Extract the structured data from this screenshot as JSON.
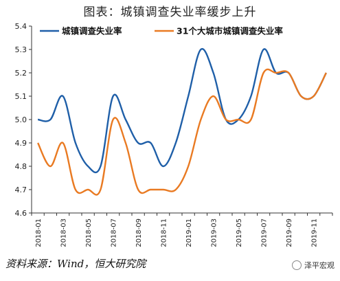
{
  "title": "图表：城镇调查失业率缓步上升",
  "source": "资料来源：Wind，恒大研究院",
  "watermark": "泽平宏观",
  "chart_data": {
    "type": "line",
    "x": [
      "2018-01",
      "2018-02",
      "2018-03",
      "2018-04",
      "2018-05",
      "2018-06",
      "2018-07",
      "2018-08",
      "2018-09",
      "2018-10",
      "2018-11",
      "2018-12",
      "2019-01",
      "2019-02",
      "2019-03",
      "2019-04",
      "2019-05",
      "2019-06",
      "2019-07",
      "2019-08",
      "2019-09",
      "2019-10",
      "2019-11",
      "2019-12"
    ],
    "x_tick_labels": [
      "2018-01",
      "2018-03",
      "2018-05",
      "2018-07",
      "2018-09",
      "2018-11",
      "2019-01",
      "2019-03",
      "2019-05",
      "2019-07",
      "2019-09",
      "2019-11"
    ],
    "ylim": [
      4.6,
      5.4
    ],
    "y_ticks": [
      "4.6",
      "4.7",
      "4.8",
      "4.9",
      "5.0",
      "5.1",
      "5.2",
      "5.3",
      "5.4"
    ],
    "legend_placement": "top",
    "grid": false,
    "series": [
      {
        "name": "城镇调查失业率",
        "color": "#1f5fa8",
        "values": [
          5.0,
          5.0,
          5.1,
          4.9,
          4.8,
          4.8,
          5.1,
          5.0,
          4.9,
          4.9,
          4.8,
          4.9,
          5.1,
          5.3,
          5.2,
          5.0,
          5.0,
          5.1,
          5.3,
          5.2,
          5.2,
          5.1,
          5.1,
          5.2
        ]
      },
      {
        "name": "31个大城市城镇调查失业率",
        "color": "#e97a22",
        "values": [
          4.9,
          4.8,
          4.9,
          4.7,
          4.7,
          4.7,
          5.0,
          4.9,
          4.7,
          4.7,
          4.7,
          4.7,
          4.8,
          5.0,
          5.1,
          5.0,
          5.0,
          5.0,
          5.2,
          5.2,
          5.2,
          5.1,
          5.1,
          5.2
        ]
      }
    ]
  }
}
